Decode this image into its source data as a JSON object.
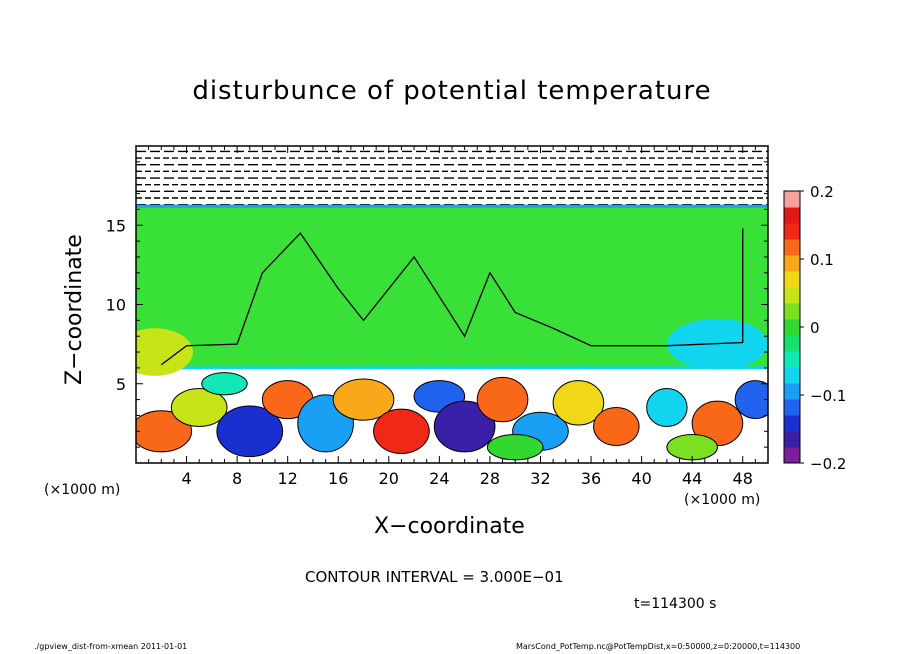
{
  "chart_data": {
    "type": "heatmap",
    "title": "disturbunce of potential temperature",
    "xlabel": "X−coordinate",
    "ylabel": "Z−coordinate",
    "x_unit_label": "(×1000 m)",
    "xlim": [
      0,
      50
    ],
    "ylim": [
      0,
      20
    ],
    "x_ticks": [
      4,
      8,
      12,
      16,
      20,
      24,
      28,
      32,
      36,
      40,
      44,
      48
    ],
    "y_ticks": [
      5,
      10,
      15
    ],
    "colorbar": {
      "range": [
        -0.2,
        0.2
      ],
      "tick_labels": [
        {
          "value": 0.2,
          "label": "0.2"
        },
        {
          "value": 0.1,
          "label": "0.1"
        },
        {
          "value": 0,
          "label": "0"
        },
        {
          "value": -0.1,
          "label": "−0.1"
        },
        {
          "value": -0.2,
          "label": "−0.2"
        }
      ],
      "colors": [
        "#7a1e9a",
        "#3a1fa8",
        "#1a2fd0",
        "#1f63ee",
        "#19a0f5",
        "#12d6f0",
        "#10e8b8",
        "#18e070",
        "#30d830",
        "#7ae020",
        "#c8e418",
        "#f0d818",
        "#f8a818",
        "#f86818",
        "#f02818",
        "#e01818",
        "#f8a0a0"
      ]
    },
    "background_color": "#38e038",
    "contour_interval_text": "CONTOUR INTERVAL = 3.000E−01",
    "annotation_time": "t=114300 s"
  },
  "footer": {
    "left": "./gpview_dist-from-xmean  2011-01-01",
    "right": "MarsCond_PotTemp.nc@PotTempDist,x=0:50000,z=0:20000,t=114300"
  }
}
